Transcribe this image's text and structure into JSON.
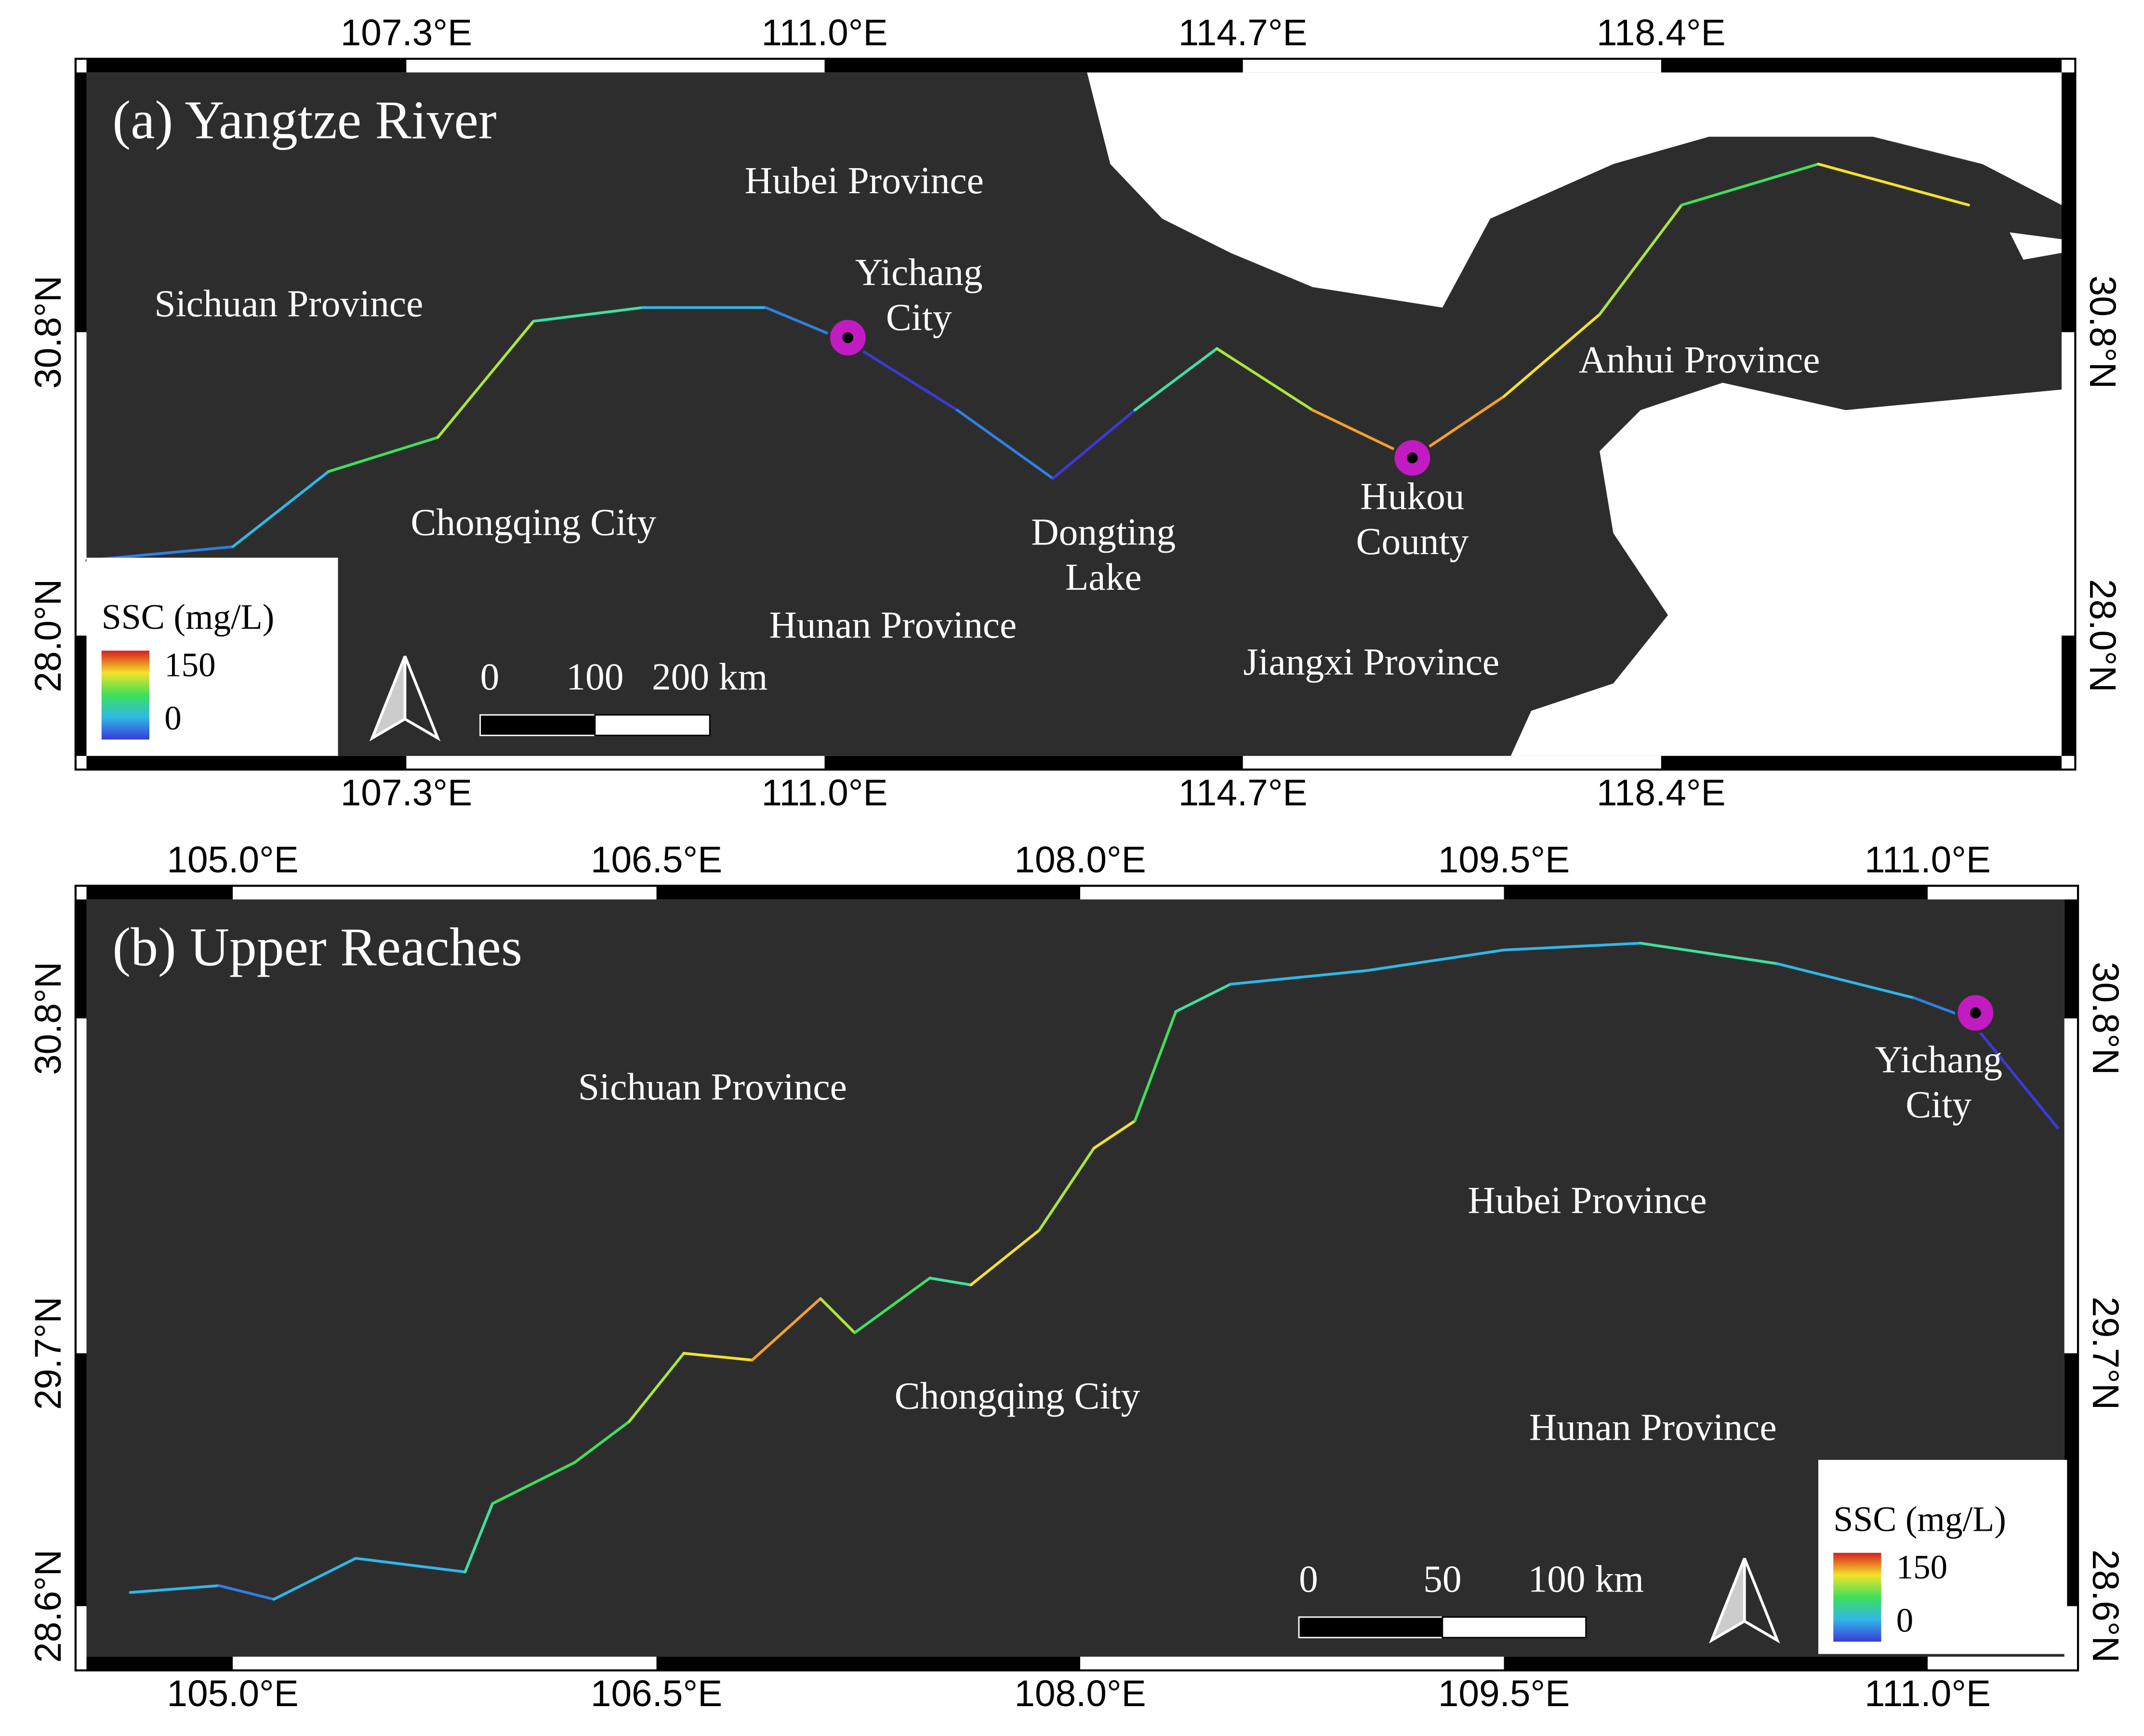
{
  "panels": [
    {
      "title": "(a) Yangtze River",
      "x_ticks": [
        "107.3°E",
        "111.0°E",
        "114.7°E",
        "118.4°E"
      ],
      "y_ticks": [
        "30.8°N",
        "28.0°N"
      ],
      "labels": [
        {
          "lines": [
            "Hubei Province"
          ]
        },
        {
          "lines": [
            "Sichuan Province"
          ]
        },
        {
          "lines": [
            "Yichang",
            "City"
          ]
        },
        {
          "lines": [
            "Anhui Province"
          ]
        },
        {
          "lines": [
            "Chongqing City"
          ]
        },
        {
          "lines": [
            "Dongting",
            "Lake"
          ]
        },
        {
          "lines": [
            "Hukou",
            "County"
          ]
        },
        {
          "lines": [
            "Hunan Province"
          ]
        },
        {
          "lines": [
            "Jiangxi Province"
          ]
        }
      ],
      "legend": {
        "title": "SSC (mg/L)",
        "max": "150",
        "min": "0"
      },
      "scale_bar": [
        "0",
        "100",
        "200 km"
      ]
    },
    {
      "title": "(b) Upper Reaches",
      "x_ticks": [
        "105.0°E",
        "106.5°E",
        "108.0°E",
        "109.5°E",
        "111.0°E"
      ],
      "y_ticks": [
        "30.8°N",
        "29.7°N",
        "28.6°N"
      ],
      "labels": [
        {
          "lines": [
            "Sichuan Province"
          ]
        },
        {
          "lines": [
            "Hubei Province"
          ]
        },
        {
          "lines": [
            "Chongqing City"
          ]
        },
        {
          "lines": [
            "Hunan Province"
          ]
        },
        {
          "lines": [
            "Yichang",
            "City"
          ]
        }
      ],
      "legend": {
        "title": "SSC (mg/L)",
        "max": "150",
        "min": "0"
      },
      "scale_bar": [
        "0",
        "50",
        "100 km"
      ]
    }
  ]
}
